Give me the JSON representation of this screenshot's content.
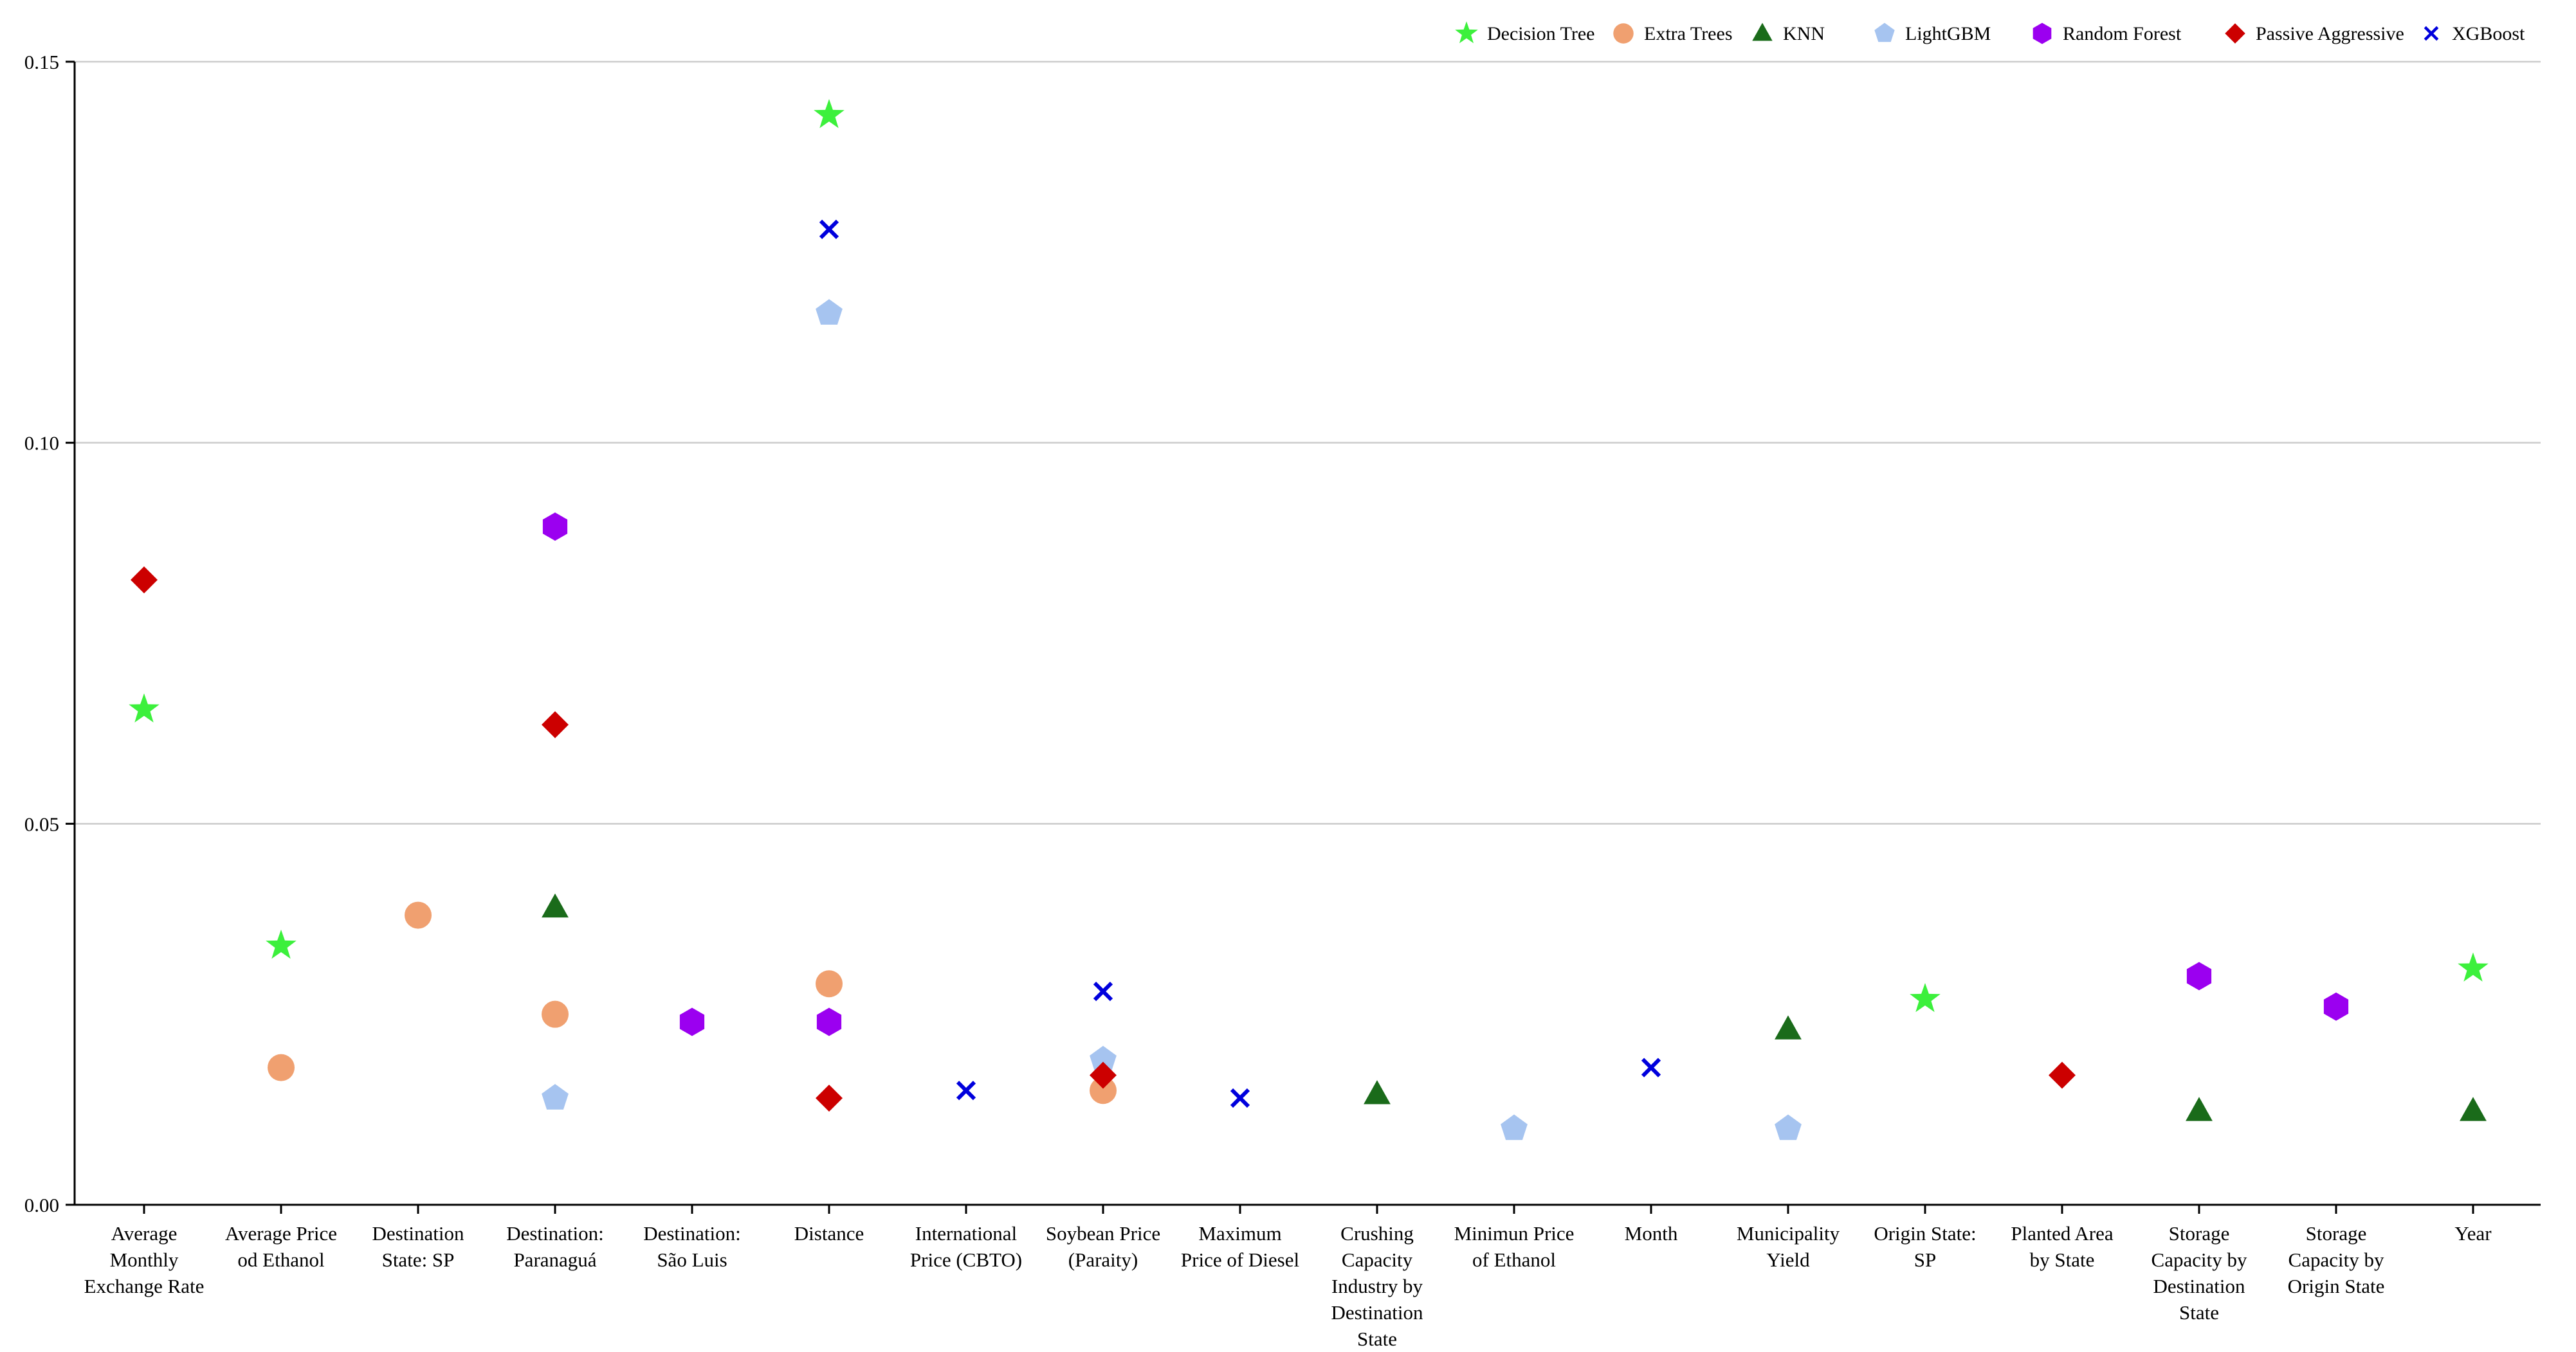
{
  "chart_data": {
    "type": "scatter",
    "title": "",
    "xlabel": "",
    "ylabel": "",
    "ylim": [
      0,
      0.15
    ],
    "yticks": [
      "0.00",
      "0.05",
      "0.10",
      "0.15"
    ],
    "grid": "horizontal",
    "legend_position": "top-right",
    "categories": [
      [
        "Average",
        "Monthly",
        "Exchange Rate"
      ],
      [
        "Average Price",
        "od Ethanol"
      ],
      [
        "Destination",
        "State: SP"
      ],
      [
        "Destination:",
        "Paranaguá"
      ],
      [
        "Destination:",
        "São Luis"
      ],
      [
        "Distance"
      ],
      [
        "International",
        "Price (CBTO)"
      ],
      [
        "Soybean Price",
        "(Paraity)"
      ],
      [
        "Maximum",
        "Price of Diesel"
      ],
      [
        "Crushing",
        "Capacity",
        "Industry by",
        "Destination",
        "State"
      ],
      [
        "Minimun Price",
        "of Ethanol"
      ],
      [
        "Month"
      ],
      [
        "Municipality",
        "Yield"
      ],
      [
        "Origin State:",
        "SP"
      ],
      [
        "Planted Area",
        "by State"
      ],
      [
        "Storage",
        "Capacity by",
        "Destination",
        "State"
      ],
      [
        "Storage",
        "Capacity by",
        "Origin State"
      ],
      [
        "Year"
      ]
    ],
    "series": [
      {
        "name": "Decision Tree",
        "marker": "star",
        "color": "#3cf03c",
        "points": [
          [
            0,
            0.065
          ],
          [
            1,
            0.034
          ],
          [
            5,
            0.143
          ],
          [
            13,
            0.027
          ],
          [
            17,
            0.031
          ]
        ]
      },
      {
        "name": "Extra Trees",
        "marker": "circle",
        "color": "#f0a070",
        "points": [
          [
            1,
            0.018
          ],
          [
            2,
            0.038
          ],
          [
            3,
            0.025
          ],
          [
            5,
            0.029
          ],
          [
            7,
            0.015
          ]
        ]
      },
      {
        "name": "KNN",
        "marker": "triangle",
        "color": "#1a6b1a",
        "points": [
          [
            3,
            0.039
          ],
          [
            9,
            0.0145
          ],
          [
            12,
            0.023
          ],
          [
            15,
            0.0123
          ],
          [
            17,
            0.0123
          ]
        ]
      },
      {
        "name": "LightGBM",
        "marker": "pentagon",
        "color": "#a6c4f0",
        "points": [
          [
            3,
            0.014
          ],
          [
            5,
            0.117
          ],
          [
            7,
            0.019
          ],
          [
            10,
            0.01
          ],
          [
            12,
            0.01
          ]
        ]
      },
      {
        "name": "Random Forest",
        "marker": "hexagon",
        "color": "#9b00f0",
        "points": [
          [
            3,
            0.089
          ],
          [
            4,
            0.024
          ],
          [
            5,
            0.024
          ],
          [
            15,
            0.03
          ],
          [
            16,
            0.026
          ]
        ]
      },
      {
        "name": "Passive Aggressive",
        "marker": "diamond",
        "color": "#cc0000",
        "points": [
          [
            0,
            0.082
          ],
          [
            3,
            0.063
          ],
          [
            5,
            0.014
          ],
          [
            7,
            0.017
          ],
          [
            14,
            0.017
          ]
        ]
      },
      {
        "name": "XGBoost",
        "marker": "x",
        "color": "#0000dd",
        "points": [
          [
            5,
            0.128
          ],
          [
            6,
            0.015
          ],
          [
            7,
            0.028
          ],
          [
            8,
            0.014
          ],
          [
            11,
            0.018
          ]
        ]
      }
    ]
  }
}
